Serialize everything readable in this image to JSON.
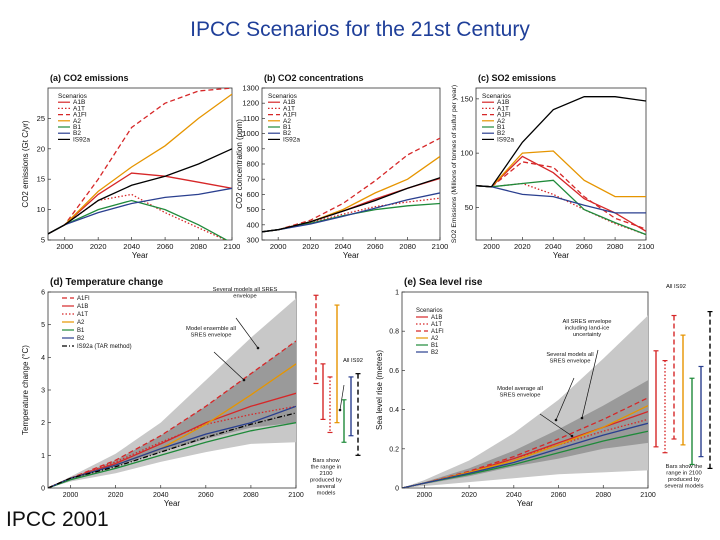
{
  "slide": {
    "title": "IPCC Scenarios for the 21st Century",
    "credit": "IPCC 2001"
  },
  "colors": {
    "A1B": "#d62728",
    "A1T": "#d62728",
    "A1FI": "#d62728",
    "A2": "#e69500",
    "B1": "#1f8a3a",
    "B2": "#2a3f8f",
    "IS92a": "#000000",
    "envelope_outer": "#c8c8c8",
    "envelope_inner": "#9a9a9a"
  },
  "chart_data": [
    {
      "id": "a",
      "type": "line",
      "title": "(a) CO2 emissions",
      "xlabel": "Year",
      "ylabel": "CO2 emissions (Gt C/yr)",
      "xlim": [
        1990,
        2100
      ],
      "ylim": [
        5,
        30
      ],
      "xticks": [
        2000,
        2020,
        2040,
        2060,
        2080,
        2100
      ],
      "yticks": [
        5,
        10,
        15,
        20,
        25
      ],
      "legend_title": "Scenarios",
      "legend_position": "top-left",
      "x": [
        1990,
        2000,
        2020,
        2040,
        2060,
        2080,
        2100
      ],
      "series": [
        {
          "name": "A1B",
          "style": "solid",
          "values": [
            6,
            7.5,
            12.5,
            16,
            15.5,
            14.5,
            13.5
          ]
        },
        {
          "name": "A1T",
          "style": "dotted",
          "values": [
            6,
            7.5,
            11.5,
            12.5,
            9.5,
            7,
            4.5
          ]
        },
        {
          "name": "A1FI",
          "style": "dashed",
          "values": [
            6,
            7.5,
            15,
            23.5,
            27.5,
            29.5,
            30
          ]
        },
        {
          "name": "A2",
          "style": "solid",
          "values": [
            6,
            7.5,
            13,
            17,
            20.5,
            25,
            29
          ]
        },
        {
          "name": "B1",
          "style": "solid",
          "values": [
            6,
            7.5,
            10,
            11.5,
            10,
            7.5,
            4.5
          ]
        },
        {
          "name": "B2",
          "style": "solid",
          "values": [
            6,
            7.5,
            9.5,
            11,
            12,
            12.5,
            13.5
          ]
        },
        {
          "name": "IS92a",
          "style": "solid",
          "values": [
            6,
            7.5,
            11.5,
            14,
            15.5,
            17.5,
            20
          ]
        }
      ]
    },
    {
      "id": "b",
      "type": "line",
      "title": "(b) CO2 concentrations",
      "xlabel": "Year",
      "ylabel": "CO2 concentration (ppm)",
      "xlim": [
        1990,
        2100
      ],
      "ylim": [
        300,
        1300
      ],
      "xticks": [
        2000,
        2020,
        2040,
        2060,
        2080,
        2100
      ],
      "yticks": [
        300,
        400,
        500,
        600,
        700,
        800,
        900,
        1000,
        1100,
        1200,
        1300
      ],
      "legend_title": "Scenarios",
      "legend_position": "top-left",
      "x": [
        1990,
        2000,
        2020,
        2040,
        2060,
        2080,
        2100
      ],
      "series": [
        {
          "name": "A1B",
          "style": "solid",
          "values": [
            354,
            368,
            420,
            490,
            570,
            640,
            705
          ]
        },
        {
          "name": "A1T",
          "style": "dotted",
          "values": [
            354,
            368,
            415,
            470,
            520,
            550,
            575
          ]
        },
        {
          "name": "A1FI",
          "style": "dashed",
          "values": [
            354,
            368,
            430,
            540,
            690,
            860,
            970
          ]
        },
        {
          "name": "A2",
          "style": "solid",
          "values": [
            354,
            368,
            420,
            500,
            610,
            700,
            850
          ]
        },
        {
          "name": "B1",
          "style": "solid",
          "values": [
            354,
            368,
            410,
            460,
            500,
            525,
            540
          ]
        },
        {
          "name": "B2",
          "style": "solid",
          "values": [
            354,
            368,
            405,
            455,
            510,
            565,
            610
          ]
        },
        {
          "name": "IS92a",
          "style": "solid",
          "values": [
            354,
            368,
            420,
            490,
            560,
            640,
            710
          ]
        }
      ]
    },
    {
      "id": "c",
      "type": "line",
      "title": "(c) SO2 emissions",
      "xlabel": "Year",
      "ylabel": "SO2 Emissions (Millions of tonnes of sulfur per year)",
      "xlim": [
        1990,
        2100
      ],
      "ylim": [
        20,
        160
      ],
      "xticks": [
        2000,
        2020,
        2040,
        2060,
        2080,
        2100
      ],
      "yticks": [
        50,
        100,
        150
      ],
      "legend_title": "Scenarios",
      "legend_position": "top-right",
      "x": [
        1990,
        2000,
        2020,
        2040,
        2060,
        2080,
        2100
      ],
      "series": [
        {
          "name": "A1B",
          "style": "solid",
          "values": [
            70,
            69,
            97,
            82,
            58,
            45,
            28
          ]
        },
        {
          "name": "A1T",
          "style": "dotted",
          "values": [
            70,
            69,
            72,
            62,
            48,
            35,
            25
          ]
        },
        {
          "name": "A1FI",
          "style": "dashed",
          "values": [
            70,
            69,
            92,
            87,
            60,
            40,
            30
          ]
        },
        {
          "name": "A2",
          "style": "solid",
          "values": [
            70,
            69,
            100,
            102,
            75,
            60,
            60
          ]
        },
        {
          "name": "B1",
          "style": "solid",
          "values": [
            70,
            69,
            72,
            75,
            48,
            36,
            25
          ]
        },
        {
          "name": "B2",
          "style": "solid",
          "values": [
            70,
            69,
            62,
            60,
            52,
            45,
            45
          ]
        },
        {
          "name": "IS92a",
          "style": "solid",
          "values": [
            70,
            69,
            110,
            140,
            152,
            152,
            148
          ]
        }
      ]
    },
    {
      "id": "d",
      "type": "line",
      "title": "(d) Temperature change",
      "xlabel": "Year",
      "ylabel": "Temperature change (°C)",
      "xlim": [
        1990,
        2100
      ],
      "ylim": [
        0,
        6
      ],
      "xticks": [
        2000,
        2020,
        2040,
        2060,
        2080,
        2100
      ],
      "yticks": [
        0,
        1,
        2,
        3,
        4,
        5,
        6
      ],
      "legend_position": "top-left",
      "annotations": [
        "Several models all SRES envelope",
        "Model ensemble all SRES envelope",
        "All IS92",
        "Bars show the range in 2100 produced by several models"
      ],
      "x": [
        1990,
        2000,
        2020,
        2040,
        2060,
        2080,
        2100
      ],
      "envelope_outer": {
        "lower": [
          0,
          0.2,
          0.45,
          0.8,
          1.1,
          1.35,
          1.4
        ],
        "upper": [
          0,
          0.35,
          1.05,
          2.0,
          3.3,
          4.6,
          5.8
        ]
      },
      "envelope_inner": {
        "lower": [
          0,
          0.25,
          0.65,
          1.1,
          1.5,
          1.85,
          2.0
        ],
        "upper": [
          0,
          0.3,
          0.85,
          1.6,
          2.5,
          3.5,
          4.5
        ]
      },
      "series": [
        {
          "name": "A1FI",
          "style": "dashed",
          "values": [
            0,
            0.3,
            0.85,
            1.6,
            2.5,
            3.5,
            4.5
          ]
        },
        {
          "name": "A1B",
          "style": "solid",
          "values": [
            0,
            0.3,
            0.75,
            1.35,
            2.0,
            2.5,
            2.9
          ]
        },
        {
          "name": "A1T",
          "style": "dotted",
          "values": [
            0,
            0.3,
            0.8,
            1.4,
            1.95,
            2.25,
            2.5
          ]
        },
        {
          "name": "A2",
          "style": "solid",
          "values": [
            0,
            0.3,
            0.7,
            1.2,
            1.95,
            2.85,
            3.8
          ]
        },
        {
          "name": "B1",
          "style": "solid",
          "values": [
            0,
            0.25,
            0.6,
            1.0,
            1.4,
            1.75,
            2.0
          ]
        },
        {
          "name": "B2",
          "style": "solid",
          "values": [
            0,
            0.3,
            0.7,
            1.2,
            1.65,
            2.0,
            2.5
          ]
        },
        {
          "name": "IS92a (TAR method)",
          "style": "dashdot",
          "values": [
            0,
            0.3,
            0.65,
            1.1,
            1.55,
            1.95,
            2.3
          ]
        }
      ],
      "range_bars_2100": [
        {
          "name": "A1FI",
          "style": "dashed",
          "low": 3.2,
          "high": 5.9
        },
        {
          "name": "A1B",
          "style": "solid",
          "low": 2.1,
          "high": 3.8
        },
        {
          "name": "A1T",
          "style": "dotted",
          "low": 1.7,
          "high": 3.4
        },
        {
          "name": "A2",
          "style": "solid",
          "low": 2.0,
          "high": 5.6
        },
        {
          "name": "B1",
          "style": "solid",
          "low": 1.4,
          "high": 2.7
        },
        {
          "name": "B2",
          "style": "solid",
          "low": 1.6,
          "high": 3.4
        },
        {
          "name": "IS92a",
          "style": "dashed",
          "low": 1.0,
          "high": 3.5
        }
      ]
    },
    {
      "id": "e",
      "type": "line",
      "title": "(e) Sea level rise",
      "xlabel": "Year",
      "ylabel": "Sea level rise (metres)",
      "xlim": [
        1990,
        2100
      ],
      "ylim": [
        0,
        1.0
      ],
      "xticks": [
        2000,
        2020,
        2040,
        2060,
        2080,
        2100
      ],
      "yticks": [
        0,
        0.2,
        0.4,
        0.6,
        0.8,
        1.0
      ],
      "legend_title": "Scenarios",
      "legend_position": "top-left",
      "annotations": [
        "All SRES envelope including land-ice uncertainty",
        "Several models all SRES envelope",
        "Model average all SRES envelope",
        "All IS92",
        "Bars show the range in 2100 produced by several models"
      ],
      "x": [
        1990,
        2000,
        2020,
        2040,
        2060,
        2080,
        2100
      ],
      "envelope_outer": {
        "lower": [
          0,
          0.01,
          0.03,
          0.05,
          0.07,
          0.08,
          0.09
        ],
        "upper": [
          0,
          0.04,
          0.14,
          0.28,
          0.45,
          0.66,
          0.88
        ]
      },
      "envelope_inner": {
        "lower": [
          0,
          0.02,
          0.06,
          0.11,
          0.15,
          0.2,
          0.23
        ],
        "upper": [
          0,
          0.03,
          0.1,
          0.19,
          0.3,
          0.42,
          0.55
        ]
      },
      "series": [
        {
          "name": "A1B",
          "style": "solid",
          "values": [
            0,
            0.025,
            0.08,
            0.15,
            0.23,
            0.31,
            0.39
          ]
        },
        {
          "name": "A1T",
          "style": "dotted",
          "values": [
            0,
            0.025,
            0.08,
            0.15,
            0.22,
            0.29,
            0.35
          ]
        },
        {
          "name": "A1FI",
          "style": "dashed",
          "values": [
            0,
            0.025,
            0.085,
            0.16,
            0.25,
            0.35,
            0.46
          ]
        },
        {
          "name": "A2",
          "style": "solid",
          "values": [
            0,
            0.025,
            0.08,
            0.14,
            0.22,
            0.31,
            0.42
          ]
        },
        {
          "name": "B1",
          "style": "solid",
          "values": [
            0,
            0.025,
            0.07,
            0.12,
            0.18,
            0.24,
            0.29
          ]
        },
        {
          "name": "B2",
          "style": "solid",
          "values": [
            0,
            0.025,
            0.075,
            0.13,
            0.2,
            0.27,
            0.33
          ]
        }
      ],
      "range_bars_2100": [
        {
          "name": "A1B",
          "style": "solid",
          "low": 0.21,
          "high": 0.7
        },
        {
          "name": "A1T",
          "style": "dotted",
          "low": 0.18,
          "high": 0.65
        },
        {
          "name": "A1FI",
          "style": "dashed",
          "low": 0.25,
          "high": 0.88
        },
        {
          "name": "A2",
          "style": "solid",
          "low": 0.22,
          "high": 0.78
        },
        {
          "name": "B1",
          "style": "solid",
          "low": 0.12,
          "high": 0.56
        },
        {
          "name": "B2",
          "style": "solid",
          "low": 0.16,
          "high": 0.62
        },
        {
          "name": "IS92",
          "style": "dashed",
          "low": 0.1,
          "high": 0.9
        }
      ]
    }
  ]
}
